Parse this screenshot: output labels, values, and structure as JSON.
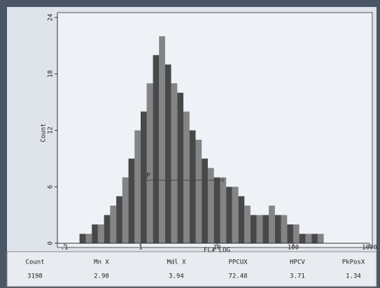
{
  "chart_data": {
    "type": "histogram",
    "xlabel": "FL4 LOG",
    "ylabel": "Count",
    "bins": [
      0.158,
      0.191,
      0.229,
      0.275,
      0.331,
      0.398,
      0.479,
      0.575,
      0.692,
      0.832,
      1,
      1.2,
      1.45,
      1.74,
      2.09,
      2.51,
      3.02,
      3.63,
      4.37,
      5.25,
      6.31,
      7.59,
      9.12,
      11,
      13.2,
      15.8,
      19.1,
      22.9,
      27.5,
      33.1,
      39.8,
      47.9,
      57.5,
      69.2,
      83.2,
      100,
      120,
      145,
      174,
      209,
      251
    ],
    "counts": [
      1,
      1,
      2,
      2,
      3,
      4,
      5,
      7,
      9,
      12,
      14,
      17,
      20,
      22,
      19,
      17,
      16,
      14,
      12,
      11,
      9,
      8,
      7,
      7,
      6,
      6,
      5,
      4,
      3,
      3,
      3,
      4,
      3,
      3,
      2,
      2,
      1,
      1,
      1,
      1
    ],
    "color": "#2a2a2a",
    "xscale": "log",
    "xlim": [
      0.1,
      1000
    ],
    "xticks": [
      {
        "value": 0.1,
        "label": ".1"
      },
      1,
      10,
      100,
      1000
    ],
    "ylim": [
      0,
      24
    ],
    "yticks": [
      0,
      6,
      12,
      18,
      24
    ],
    "marker": {
      "label": "P",
      "range": [
        1.05,
        12
      ],
      "level": 6.7
    },
    "stats": {
      "headers": [
        "Count",
        "Mn X",
        "Mdl X",
        "PPCUX",
        "HPCV",
        "PkPosX"
      ],
      "values": [
        "3198",
        "2.98",
        "3.94",
        "72.48",
        "3.71",
        "1.34"
      ]
    }
  }
}
